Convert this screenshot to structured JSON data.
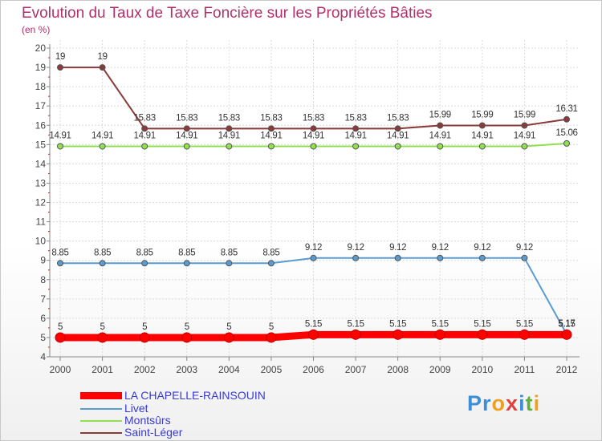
{
  "chart_data": {
    "type": "line",
    "title": "Evolution du Taux de Taxe Foncière sur les Propriétés Bâties",
    "unit": "(en %)",
    "x": [
      "2000",
      "2001",
      "2002",
      "2003",
      "2004",
      "2005",
      "2006",
      "2007",
      "2008",
      "2009",
      "2010",
      "2011",
      "2012"
    ],
    "ylim": [
      4,
      20
    ],
    "yticks": [
      "4",
      "5",
      "6",
      "7",
      "8",
      "9",
      "10",
      "11",
      "12",
      "13",
      "14",
      "15",
      "16",
      "17",
      "18",
      "19",
      "20"
    ],
    "series": [
      {
        "name": "LA CHAPELLE-RAINSOUIN",
        "color": "#ff0000",
        "values": [
          5,
          5,
          5,
          5,
          5,
          5,
          5.15,
          5.15,
          5.15,
          5.15,
          5.15,
          5.15,
          5.15
        ],
        "labels": [
          "5",
          "5",
          "5",
          "5",
          "5",
          "5",
          "5.15",
          "5.15",
          "5.15",
          "5.15",
          "5.15",
          "5.15",
          "5.15"
        ]
      },
      {
        "name": "Livet",
        "color": "#5a9bd0",
        "values": [
          8.85,
          8.85,
          8.85,
          8.85,
          8.85,
          8.85,
          9.12,
          9.12,
          9.12,
          9.12,
          9.12,
          9.12,
          5.17
        ],
        "labels": [
          "8.85",
          "8.85",
          "8.85",
          "8.85",
          "8.85",
          "8.85",
          "9.12",
          "9.12",
          "9.12",
          "9.12",
          "9.12",
          "9.12",
          "5.17"
        ]
      },
      {
        "name": "Montsûrs",
        "color": "#90e050",
        "values": [
          14.91,
          14.91,
          14.91,
          14.91,
          14.91,
          14.91,
          14.91,
          14.91,
          14.91,
          14.91,
          14.91,
          14.91,
          15.06
        ],
        "labels": [
          "14.91",
          "14.91",
          "14.91",
          "14.91",
          "14.91",
          "14.91",
          "14.91",
          "14.91",
          "14.91",
          "14.91",
          "14.91",
          "14.91",
          "15.06"
        ]
      },
      {
        "name": "Saint-Léger",
        "color": "#8b3a3a",
        "values": [
          19,
          19,
          15.83,
          15.83,
          15.83,
          15.83,
          15.83,
          15.83,
          15.83,
          15.99,
          15.99,
          15.99,
          16.31
        ],
        "labels": [
          "19",
          "19",
          "15.83",
          "15.83",
          "15.83",
          "15.83",
          "15.83",
          "15.83",
          "15.83",
          "15.99",
          "15.99",
          "15.99",
          "16.31"
        ]
      }
    ]
  }
}
